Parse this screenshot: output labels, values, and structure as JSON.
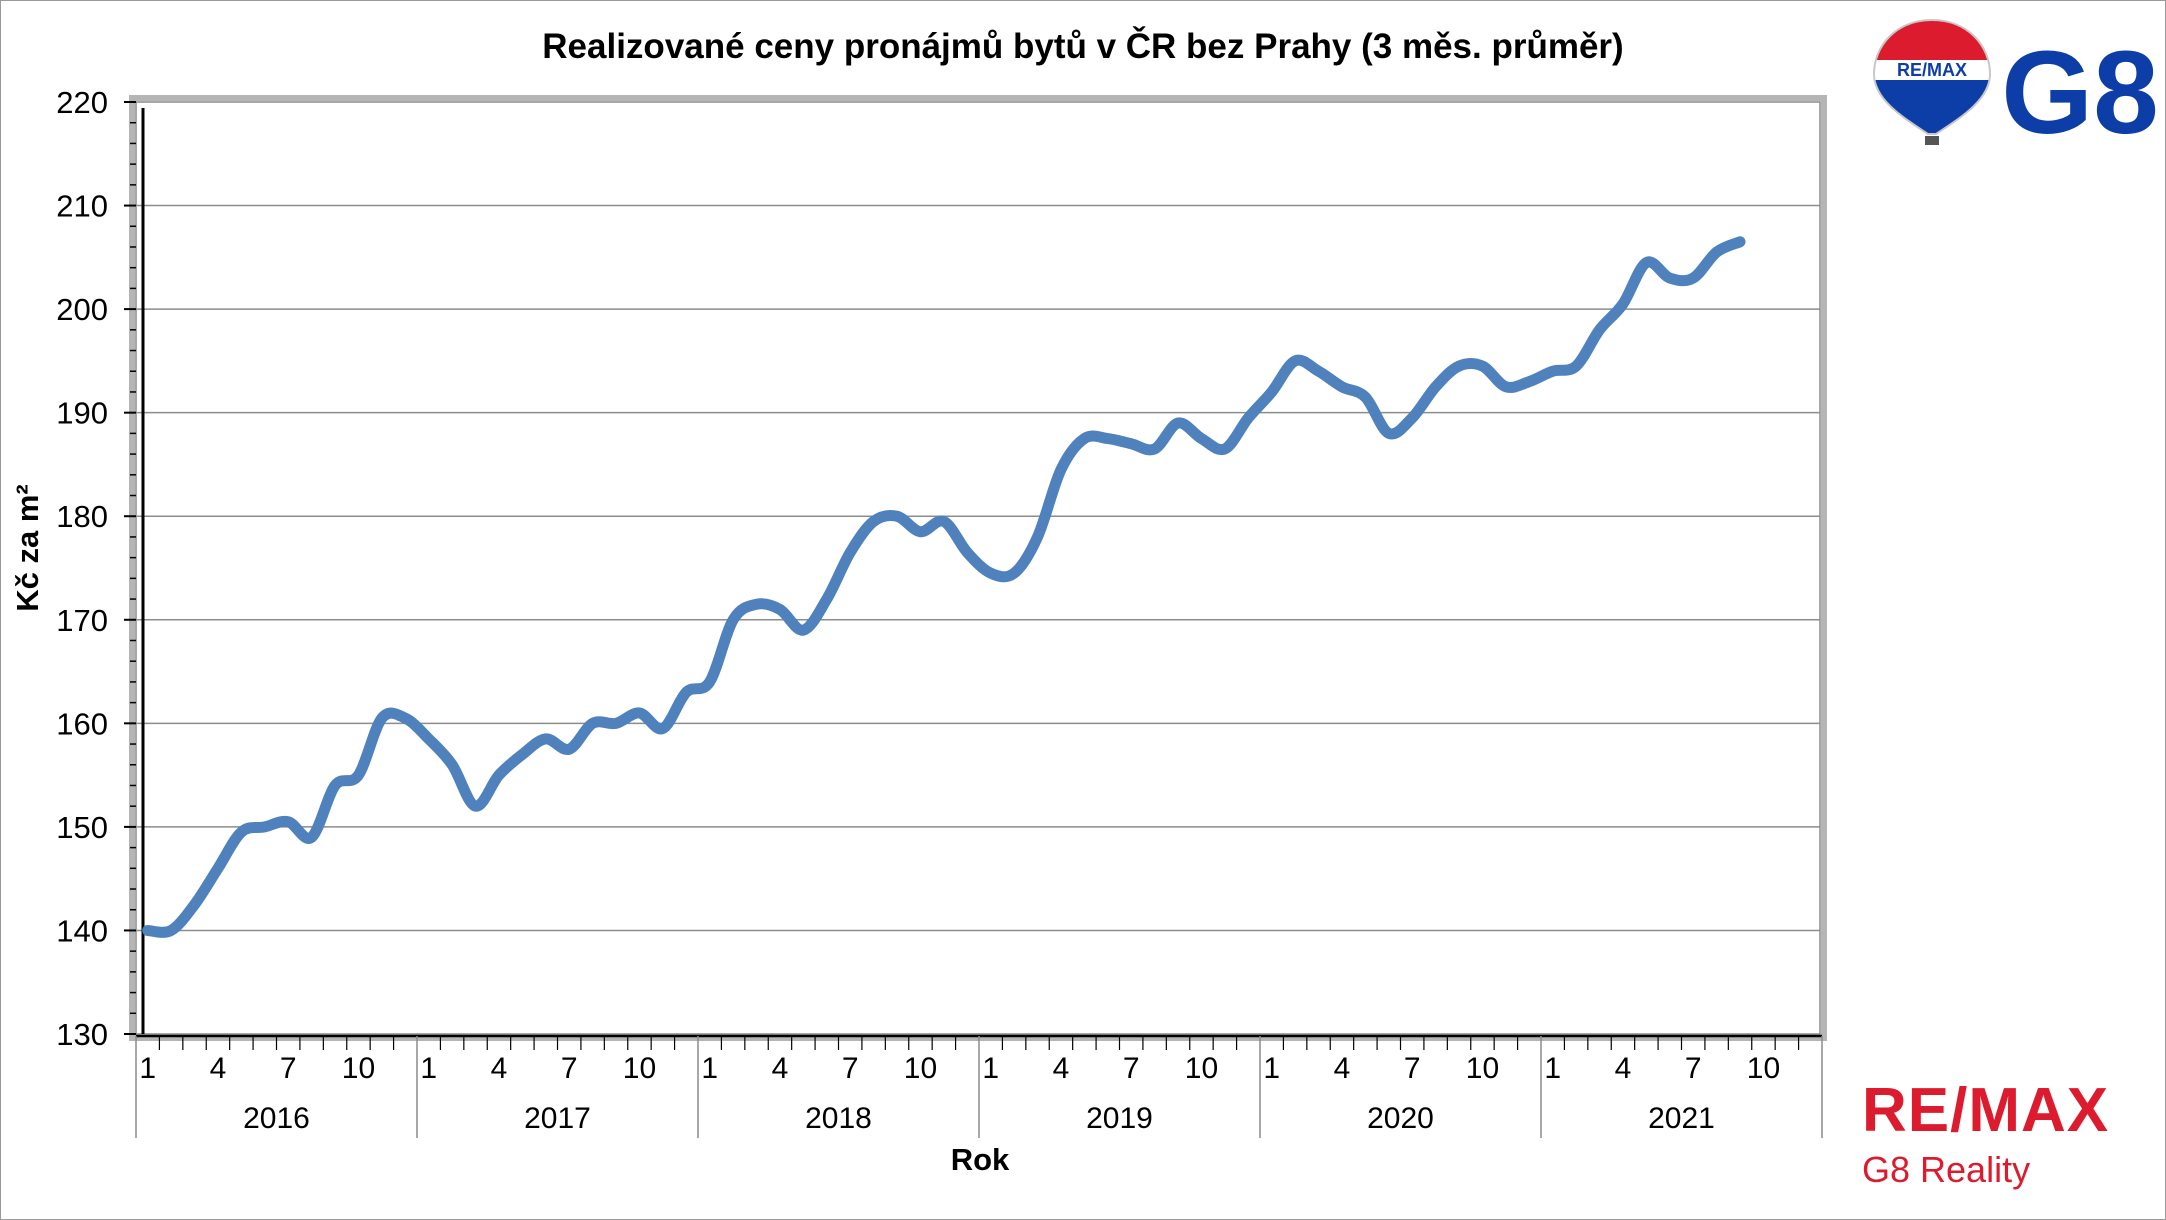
{
  "brand": {
    "balloon_text": "RE/MAX",
    "office_mark": "G8",
    "name": "RE/MAX",
    "subname": "G8 Reality",
    "colors": {
      "red": "#dc1c2e",
      "blue": "#0d3ea8",
      "line": "#4f81bd"
    }
  },
  "chart_data": {
    "type": "line",
    "title": "Realizované ceny pronájmů bytů v ČR bez Prahy (3 měs. průměr)",
    "xlabel": "Rok",
    "ylabel": "Kč za m²",
    "ylim": [
      130,
      220
    ],
    "yticks": [
      "130",
      "140",
      "150",
      "160",
      "170",
      "180",
      "190",
      "200",
      "210",
      "220"
    ],
    "grid": true,
    "legend": "none",
    "month_tick_labels": [
      "1",
      "4",
      "7",
      "10"
    ],
    "years": [
      "2016",
      "2017",
      "2018",
      "2019",
      "2020",
      "2021"
    ],
    "series": [
      {
        "values": [
          140,
          140,
          142.5,
          146,
          149.5,
          150,
          150.5,
          149,
          154,
          155,
          160.5,
          160.5,
          158.5,
          156,
          152,
          155,
          157,
          158.5,
          157.5,
          160,
          160,
          161,
          159.5,
          163,
          164,
          170,
          171.5,
          171,
          169,
          172,
          176.5,
          179.5,
          180,
          178.5,
          179.5,
          176.5,
          174.5,
          174.5,
          178,
          184.5,
          187.5,
          187.5,
          187,
          186.5,
          189,
          187.5,
          186.5,
          189.5,
          192,
          195,
          194,
          192.5,
          191.5,
          188,
          189.5,
          192.5,
          194.5,
          194.5,
          192.5,
          193,
          194,
          194.5,
          198,
          200.5,
          204.5,
          203,
          203,
          205.5,
          206.5
        ]
      }
    ]
  }
}
